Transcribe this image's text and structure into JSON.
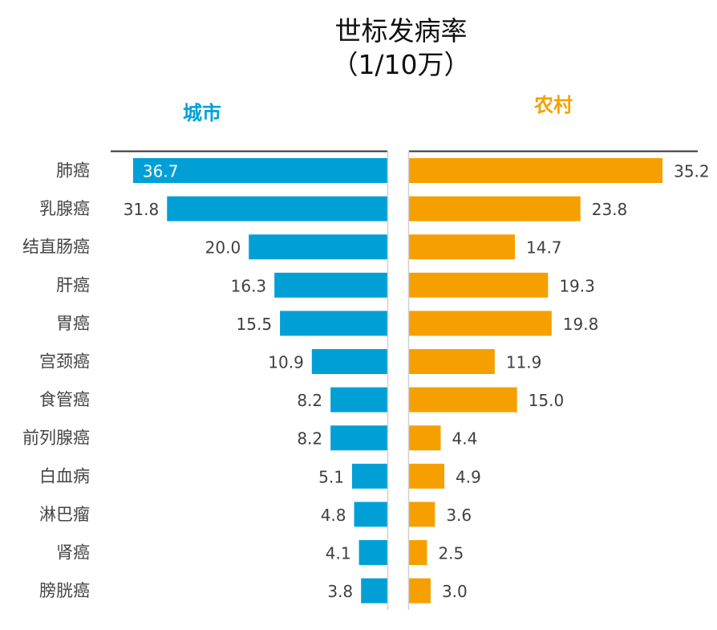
{
  "chart_data": {
    "type": "bar",
    "orientation": "horizontal-butterfly",
    "title": "世标发病率",
    "subtitle": "（1/10万）",
    "categories": [
      "肺癌",
      "乳腺癌",
      "结直肠癌",
      "肝癌",
      "胃癌",
      "宫颈癌",
      "食管癌",
      "前列腺癌",
      "白血病",
      "淋巴瘤",
      "肾癌",
      "膀胱癌"
    ],
    "series": [
      {
        "name": "城市",
        "color": "#00a0d6",
        "values": [
          36.7,
          31.8,
          20.0,
          16.3,
          15.5,
          10.9,
          8.2,
          8.2,
          5.1,
          4.8,
          4.1,
          3.8
        ]
      },
      {
        "name": "农村",
        "color": "#f5a000",
        "values": [
          35.2,
          23.8,
          14.7,
          19.3,
          19.8,
          11.9,
          15.0,
          4.4,
          4.9,
          3.6,
          2.5,
          3.0
        ]
      }
    ],
    "xlim": [
      0,
      40
    ],
    "grid": false,
    "data_labels": true
  }
}
